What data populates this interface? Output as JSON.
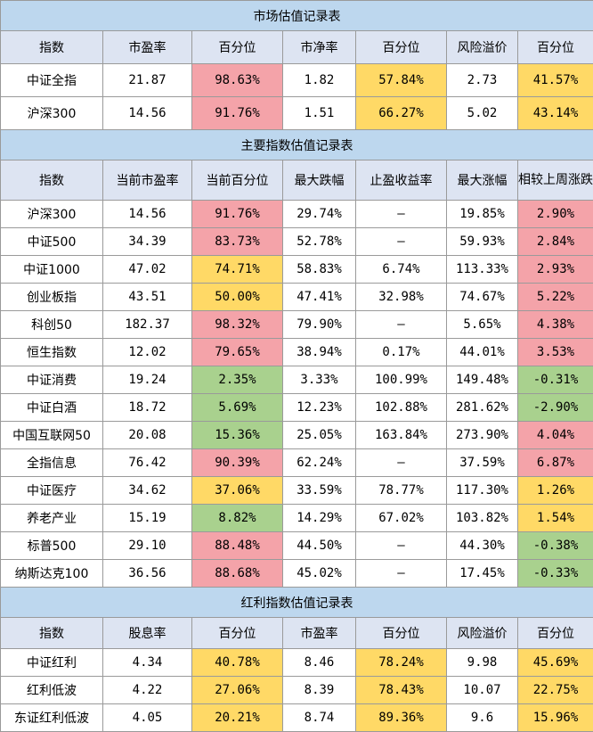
{
  "colors": {
    "title_bg": "#bdd7ee",
    "header_bg": "#dde4f2",
    "high_percentile_bg": "#f4a3a9",
    "mid_percentile_bg": "#ffd966",
    "low_percentile_bg": "#a9d18e",
    "positive_text": "#c00000",
    "drawdown_text": "#00b050"
  },
  "market": {
    "title": "市场估值记录表",
    "headers": [
      "指数",
      "市盈率",
      "百分位",
      "市净率",
      "百分位",
      "风险溢价",
      "百分位"
    ],
    "rows": [
      {
        "name": "中证全指",
        "pe": "21.87",
        "pe_pct": "98.63%",
        "pb": "1.82",
        "pb_pct": "57.84%",
        "rp": "2.73",
        "rp_pct": "41.57%"
      },
      {
        "name": "沪深300",
        "pe": "14.56",
        "pe_pct": "91.76%",
        "pb": "1.51",
        "pb_pct": "66.27%",
        "rp": "5.02",
        "rp_pct": "43.14%"
      }
    ]
  },
  "major": {
    "title": "主要指数估值记录表",
    "headers": [
      "指数",
      "当前市盈率",
      "当前百分位",
      "最大跌幅",
      "止盈收益率",
      "最大涨幅",
      "相较上周涨跌幅"
    ],
    "rows": [
      {
        "name": "沪深300",
        "pe": "14.56",
        "pct": "91.76%",
        "dd": "29.74%",
        "tp": "–",
        "up": "19.85%",
        "wk": "2.90%"
      },
      {
        "name": "中证500",
        "pe": "34.39",
        "pct": "83.73%",
        "dd": "52.78%",
        "tp": "–",
        "up": "59.93%",
        "wk": "2.84%"
      },
      {
        "name": "中证1000",
        "pe": "47.02",
        "pct": "74.71%",
        "dd": "58.83%",
        "tp": "6.74%",
        "up": "113.33%",
        "wk": "2.93%"
      },
      {
        "name": "创业板指",
        "pe": "43.51",
        "pct": "50.00%",
        "dd": "47.41%",
        "tp": "32.98%",
        "up": "74.67%",
        "wk": "5.22%"
      },
      {
        "name": "科创50",
        "pe": "182.37",
        "pct": "98.32%",
        "dd": "79.90%",
        "tp": "–",
        "up": "5.65%",
        "wk": "4.38%"
      },
      {
        "name": "恒生指数",
        "pe": "12.02",
        "pct": "79.65%",
        "dd": "38.94%",
        "tp": "0.17%",
        "up": "44.01%",
        "wk": "3.53%"
      },
      {
        "name": "中证消费",
        "pe": "19.24",
        "pct": "2.35%",
        "dd": "3.33%",
        "tp": "100.99%",
        "up": "149.48%",
        "wk": "-0.31%"
      },
      {
        "name": "中证白酒",
        "pe": "18.72",
        "pct": "5.69%",
        "dd": "12.23%",
        "tp": "102.88%",
        "up": "281.62%",
        "wk": "-2.90%"
      },
      {
        "name": "中国互联网50",
        "pe": "20.08",
        "pct": "15.36%",
        "dd": "25.05%",
        "tp": "163.84%",
        "up": "273.90%",
        "wk": "4.04%"
      },
      {
        "name": "全指信息",
        "pe": "76.42",
        "pct": "90.39%",
        "dd": "62.24%",
        "tp": "–",
        "up": "37.59%",
        "wk": "6.87%"
      },
      {
        "name": "中证医疗",
        "pe": "34.62",
        "pct": "37.06%",
        "dd": "33.59%",
        "tp": "78.77%",
        "up": "117.30%",
        "wk": "1.26%"
      },
      {
        "name": "养老产业",
        "pe": "15.19",
        "pct": "8.82%",
        "dd": "14.29%",
        "tp": "67.02%",
        "up": "103.82%",
        "wk": "1.54%"
      },
      {
        "name": "标普500",
        "pe": "29.10",
        "pct": "88.48%",
        "dd": "44.50%",
        "tp": "–",
        "up": "44.30%",
        "wk": "-0.38%"
      },
      {
        "name": "纳斯达克100",
        "pe": "36.56",
        "pct": "88.68%",
        "dd": "45.02%",
        "tp": "–",
        "up": "17.45%",
        "wk": "-0.33%"
      }
    ]
  },
  "dividend": {
    "title": "红利指数估值记录表",
    "headers": [
      "指数",
      "股息率",
      "百分位",
      "市盈率",
      "百分位",
      "风险溢价",
      "百分位"
    ],
    "rows": [
      {
        "name": "中证红利",
        "dy": "4.34",
        "dy_pct": "40.78%",
        "pe": "8.46",
        "pe_pct": "78.24%",
        "rp": "9.98",
        "rp_pct": "45.69%"
      },
      {
        "name": "红利低波",
        "dy": "4.22",
        "dy_pct": "27.06%",
        "pe": "8.39",
        "pe_pct": "78.43%",
        "rp": "10.07",
        "rp_pct": "22.75%"
      },
      {
        "name": "东证红利低波",
        "dy": "4.05",
        "dy_pct": "20.21%",
        "pe": "8.74",
        "pe_pct": "89.36%",
        "rp": "9.6",
        "rp_pct": "15.96%"
      }
    ]
  }
}
